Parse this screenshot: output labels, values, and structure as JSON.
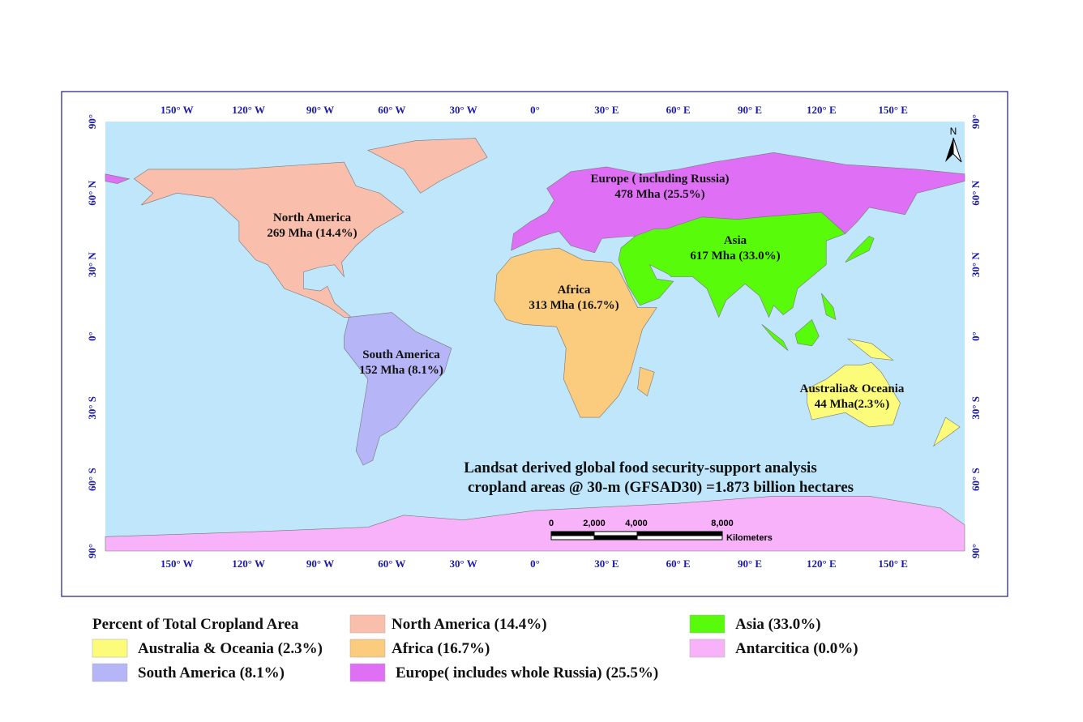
{
  "map": {
    "longitude_labels": [
      "150° W",
      "120° W",
      "90° W",
      "60° W",
      "30° W",
      "0°",
      "30° E",
      "60° E",
      "90° E",
      "120° E",
      "150° E"
    ],
    "latitude_labels": [
      "90°",
      "60° N",
      "30° N",
      "0°",
      "30° S",
      "60° S",
      "90°"
    ],
    "north_arrow": "N",
    "regions": [
      {
        "name": "North America",
        "area": "269 Mha (14.4%)"
      },
      {
        "name": "Europe ( including Russia)",
        "area": "478 Mha (25.5%)"
      },
      {
        "name": "Asia",
        "area": "617 Mha (33.0%)"
      },
      {
        "name": "Africa",
        "area": "313 Mha (16.7%)"
      },
      {
        "name": "South America",
        "area": "152 Mha (8.1%)"
      },
      {
        "name": "Australia& Oceania",
        "area": "44 Mha(2.3%)"
      }
    ],
    "title_lines": [
      "Landsat derived global food security-support analysis",
      "cropland areas @ 30-m (GFSAD30) =1.873 billion hectares"
    ],
    "scale_bar": {
      "labels": [
        "0",
        "2,000",
        "4,000",
        "8,000"
      ],
      "unit": "Kilometers"
    }
  },
  "legend": {
    "title": "Percent of Total Cropland Area",
    "items": [
      {
        "label": "Australia & Oceania (2.3%)",
        "color": "#fcfc7a"
      },
      {
        "label": "South America (8.1%)",
        "color": "#b6b5f7"
      },
      {
        "label": "North America (14.4%)",
        "color": "#f9bfac"
      },
      {
        "label": "Africa (16.7%)",
        "color": "#fbcb7e"
      },
      {
        "label": "Europe( includes whole Russia) (25.5%)",
        "color": "#df70f5"
      },
      {
        "label": "Asia (33.0%)",
        "color": "#58fb0a"
      },
      {
        "label": "Antarcitica (0.0%)",
        "color": "#f8b2f9"
      }
    ]
  }
}
